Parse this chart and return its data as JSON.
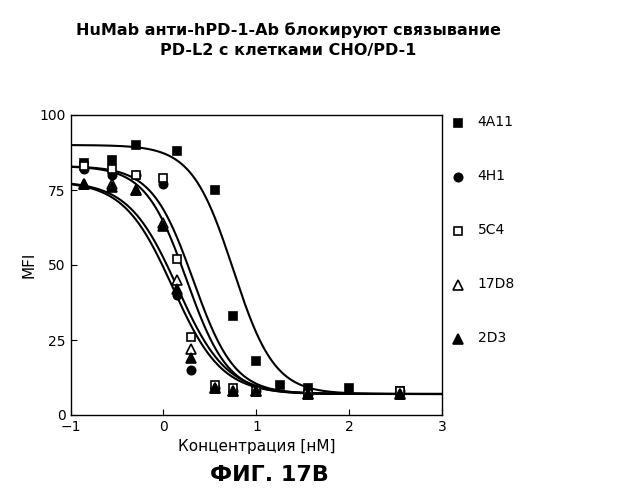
{
  "title_line1": "HuMab анти-hPD-1-Ab блокируют связывание",
  "title_line2": "PD-L2 с клетками CHO/PD-1",
  "xlabel": "Концентрация [нМ]",
  "ylabel": "MFI",
  "caption": "ФИГ. 17В",
  "xlim": [
    -1,
    3
  ],
  "ylim": [
    0,
    100
  ],
  "xticks": [
    -1,
    0,
    1,
    2,
    3
  ],
  "yticks": [
    0,
    25,
    50,
    75,
    100
  ],
  "series": [
    {
      "label": "4A11",
      "marker": "s",
      "fillstyle": "full",
      "color": "#000000",
      "top": 90,
      "bottom": 7,
      "ic50": 0.75,
      "hill": 4.5,
      "data_x": [
        -0.85,
        -0.55,
        -0.3,
        0.15,
        0.55,
        0.75,
        1.0,
        1.25,
        1.55,
        2.0,
        2.55
      ],
      "data_y": [
        84,
        85,
        90,
        88,
        75,
        33,
        18,
        10,
        9,
        9,
        8
      ]
    },
    {
      "label": "4H1",
      "marker": "o",
      "fillstyle": "full",
      "color": "#000000",
      "top": 83,
      "bottom": 7,
      "ic50": 0.25,
      "hill": 4.5,
      "data_x": [
        -0.85,
        -0.55,
        -0.3,
        0.0,
        0.15,
        0.3,
        0.55,
        0.75,
        1.0,
        1.55,
        2.55
      ],
      "data_y": [
        82,
        80,
        80,
        77,
        40,
        15,
        9,
        8,
        8,
        7,
        8
      ]
    },
    {
      "label": "5C4",
      "marker": "s",
      "fillstyle": "none",
      "color": "#000000",
      "top": 83,
      "bottom": 7,
      "ic50": 0.32,
      "hill": 4.5,
      "data_x": [
        -0.85,
        -0.55,
        -0.3,
        0.0,
        0.15,
        0.3,
        0.55,
        0.75,
        1.0,
        1.55,
        2.55
      ],
      "data_y": [
        83,
        82,
        80,
        79,
        52,
        26,
        10,
        9,
        8,
        7,
        8
      ]
    },
    {
      "label": "17D8",
      "marker": "^",
      "fillstyle": "none",
      "color": "#000000",
      "top": 78,
      "bottom": 7,
      "ic50": 0.15,
      "hill": 3.8,
      "data_x": [
        -0.85,
        -0.55,
        -0.3,
        0.0,
        0.15,
        0.3,
        0.55,
        0.75,
        1.0,
        1.55,
        2.55
      ],
      "data_y": [
        77,
        77,
        75,
        64,
        45,
        22,
        9,
        8,
        8,
        7,
        7
      ]
    },
    {
      "label": "2D3",
      "marker": "^",
      "fillstyle": "full",
      "color": "#000000",
      "top": 78,
      "bottom": 7,
      "ic50": 0.1,
      "hill": 3.8,
      "data_x": [
        -0.85,
        -0.55,
        -0.3,
        0.0,
        0.15,
        0.3,
        0.55,
        0.75,
        1.0,
        1.55,
        2.55
      ],
      "data_y": [
        77,
        76,
        75,
        63,
        42,
        19,
        9,
        8,
        8,
        7,
        7
      ]
    }
  ],
  "background_color": "#ffffff",
  "plot_bg_color": "#ffffff",
  "title_fontsize": 11.5,
  "axis_fontsize": 11,
  "legend_fontsize": 10,
  "caption_fontsize": 16
}
